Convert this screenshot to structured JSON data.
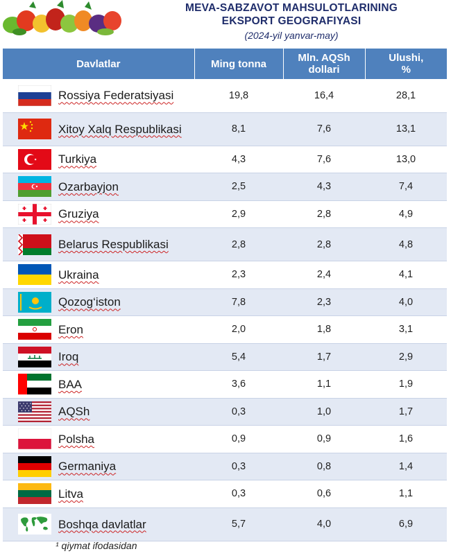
{
  "header": {
    "title_line1": "MEVA-SABZAVOT MAHSULOTLARINING",
    "title_line2": "EKSPORT GEOGRAFIYASI",
    "subtitle": "(2024-yil yanvar-may)"
  },
  "table": {
    "columns": {
      "country": "Davlatlar",
      "tonnes": "Ming tonna",
      "usd_line1": "Mln. AQSh",
      "usd_line2": "dollari",
      "share_line1": "Ulushi,",
      "share_line2": "%"
    },
    "rows": [
      {
        "flag": "russia-flag-icon",
        "name": "Rossiya Federatsiyasi",
        "tonnes": "19,8",
        "usd": "16,4",
        "share": "28,1"
      },
      {
        "flag": "china-flag-icon",
        "name": "Xitoy Xalq Respublikasi",
        "tonnes": "8,1",
        "usd": "7,6",
        "share": "13,1"
      },
      {
        "flag": "turkey-flag-icon",
        "name": "Turkiya",
        "tonnes": "4,3",
        "usd": "7,6",
        "share": "13,0"
      },
      {
        "flag": "azerbaijan-flag-icon",
        "name": "Ozarbayjon",
        "tonnes": "2,5",
        "usd": "4,3",
        "share": "7,4"
      },
      {
        "flag": "georgia-flag-icon",
        "name": "Gruziya",
        "tonnes": "2,9",
        "usd": "2,8",
        "share": "4,9"
      },
      {
        "flag": "belarus-flag-icon",
        "name": "Belarus Respublikasi",
        "tonnes": "2,8",
        "usd": "2,8",
        "share": "4,8"
      },
      {
        "flag": "ukraine-flag-icon",
        "name": "Ukraina",
        "tonnes": "2,3",
        "usd": "2,4",
        "share": "4,1"
      },
      {
        "flag": "kazakhstan-flag-icon",
        "name": "Qozog‘iston",
        "tonnes": "7,8",
        "usd": "2,3",
        "share": "4,0"
      },
      {
        "flag": "iran-flag-icon",
        "name": "Eron",
        "tonnes": "2,0",
        "usd": "1,8",
        "share": "3,1"
      },
      {
        "flag": "iraq-flag-icon",
        "name": "Iroq",
        "tonnes": "5,4",
        "usd": "1,7",
        "share": "2,9"
      },
      {
        "flag": "uae-flag-icon",
        "name": "BAA",
        "tonnes": "3,6",
        "usd": "1,1",
        "share": "1,9"
      },
      {
        "flag": "usa-flag-icon",
        "name": "AQSh",
        "tonnes": "0,3",
        "usd": "1,0",
        "share": "1,7"
      },
      {
        "flag": "poland-flag-icon",
        "name": "Polsha",
        "tonnes": "0,9",
        "usd": "0,9",
        "share": "1,6"
      },
      {
        "flag": "germany-flag-icon",
        "name": "Germaniya",
        "tonnes": "0,3",
        "usd": "0,8",
        "share": "1,4"
      },
      {
        "flag": "lithuania-flag-icon",
        "name": "Litva",
        "tonnes": "0,3",
        "usd": "0,6",
        "share": "1,1"
      },
      {
        "flag": "world-map-icon",
        "name": "Boshqa davlatlar",
        "tonnes": "5,7",
        "usd": "4,0",
        "share": "6,9"
      }
    ]
  },
  "footnote": "¹ qiymat ifodasidan",
  "colors": {
    "header_bg": "#4f81bd",
    "title": "#1f2d6b",
    "row_alt": "#e3e9f4"
  }
}
